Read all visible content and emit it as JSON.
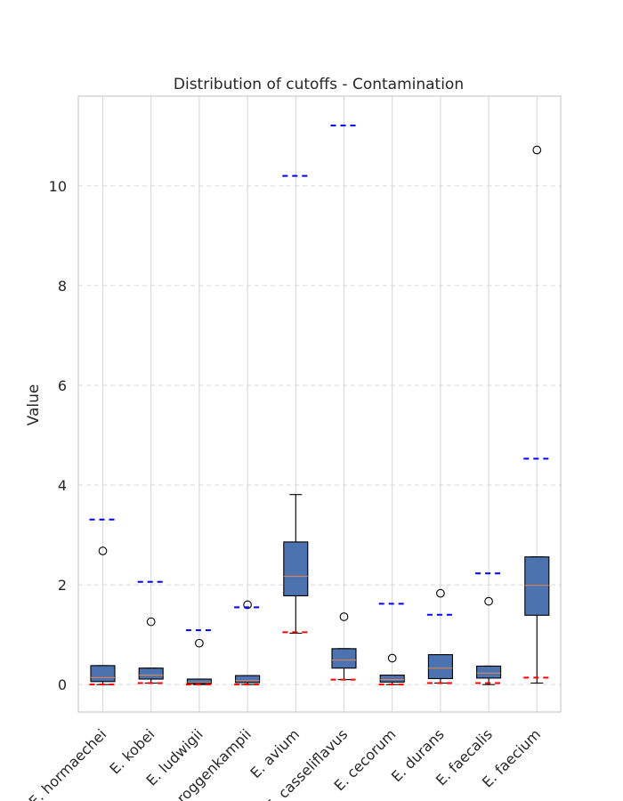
{
  "chart_data": {
    "type": "box",
    "title": "Distribution of cutoffs - Contamination",
    "xlabel": "",
    "ylabel": "Value",
    "ylim": [
      -0.55,
      11.8
    ],
    "yticks": [
      0,
      2,
      4,
      6,
      8,
      10
    ],
    "grid": true,
    "colors": {
      "box_fill": "#4c72b0",
      "median": "#dd8452",
      "upper_cutoff": "#0000ff",
      "lower_cutoff": "#ff0000",
      "grid": "#d9d9d9",
      "frame": "#cccccc"
    },
    "categories": [
      "E. hormaechei",
      "E. kobei",
      "E. ludwigii",
      "E. roggenkampii",
      "E. avium",
      "E. casseliflavus",
      "E. cecorum",
      "E. durans",
      "E. faecalis",
      "E. faecium"
    ],
    "boxes": [
      {
        "whislo": 0.0,
        "q1": 0.06,
        "med": 0.14,
        "q3": 0.38,
        "whishi": 0.38,
        "fliers": [
          2.68
        ],
        "upper_cutoff": 3.31,
        "lower_cutoff": 0.0
      },
      {
        "whislo": 0.03,
        "q1": 0.11,
        "med": 0.19,
        "q3": 0.33,
        "whishi": 0.33,
        "fliers": [
          1.26
        ],
        "upper_cutoff": 2.06,
        "lower_cutoff": 0.03
      },
      {
        "whislo": 0.0,
        "q1": 0.02,
        "med": 0.05,
        "q3": 0.11,
        "whishi": 0.11,
        "fliers": [
          0.83
        ],
        "upper_cutoff": 1.09,
        "lower_cutoff": 0.0
      },
      {
        "whislo": 0.0,
        "q1": 0.04,
        "med": 0.08,
        "q3": 0.18,
        "whishi": 0.18,
        "fliers": [
          1.6
        ],
        "upper_cutoff": 1.55,
        "lower_cutoff": 0.0
      },
      {
        "whislo": 1.03,
        "q1": 1.78,
        "med": 2.17,
        "q3": 2.86,
        "whishi": 3.81,
        "fliers": [],
        "upper_cutoff": 10.2,
        "lower_cutoff": 1.05
      },
      {
        "whislo": 0.1,
        "q1": 0.33,
        "med": 0.49,
        "q3": 0.72,
        "whishi": 0.72,
        "fliers": [
          1.36
        ],
        "upper_cutoff": 11.21,
        "lower_cutoff": 0.1
      },
      {
        "whislo": 0.0,
        "q1": 0.05,
        "med": 0.1,
        "q3": 0.19,
        "whishi": 0.19,
        "fliers": [
          0.53
        ],
        "upper_cutoff": 1.62,
        "lower_cutoff": 0.0
      },
      {
        "whislo": 0.03,
        "q1": 0.12,
        "med": 0.33,
        "q3": 0.6,
        "whishi": 0.6,
        "fliers": [
          1.83
        ],
        "upper_cutoff": 1.4,
        "lower_cutoff": 0.03
      },
      {
        "whislo": 0.0,
        "q1": 0.13,
        "med": 0.23,
        "q3": 0.37,
        "whishi": 0.37,
        "fliers": [
          1.67
        ],
        "upper_cutoff": 2.23,
        "lower_cutoff": 0.03
      },
      {
        "whislo": 0.03,
        "q1": 1.39,
        "med": 1.99,
        "q3": 2.56,
        "whishi": 2.56,
        "fliers": [
          10.72
        ],
        "upper_cutoff": 4.53,
        "lower_cutoff": 0.14
      }
    ]
  }
}
